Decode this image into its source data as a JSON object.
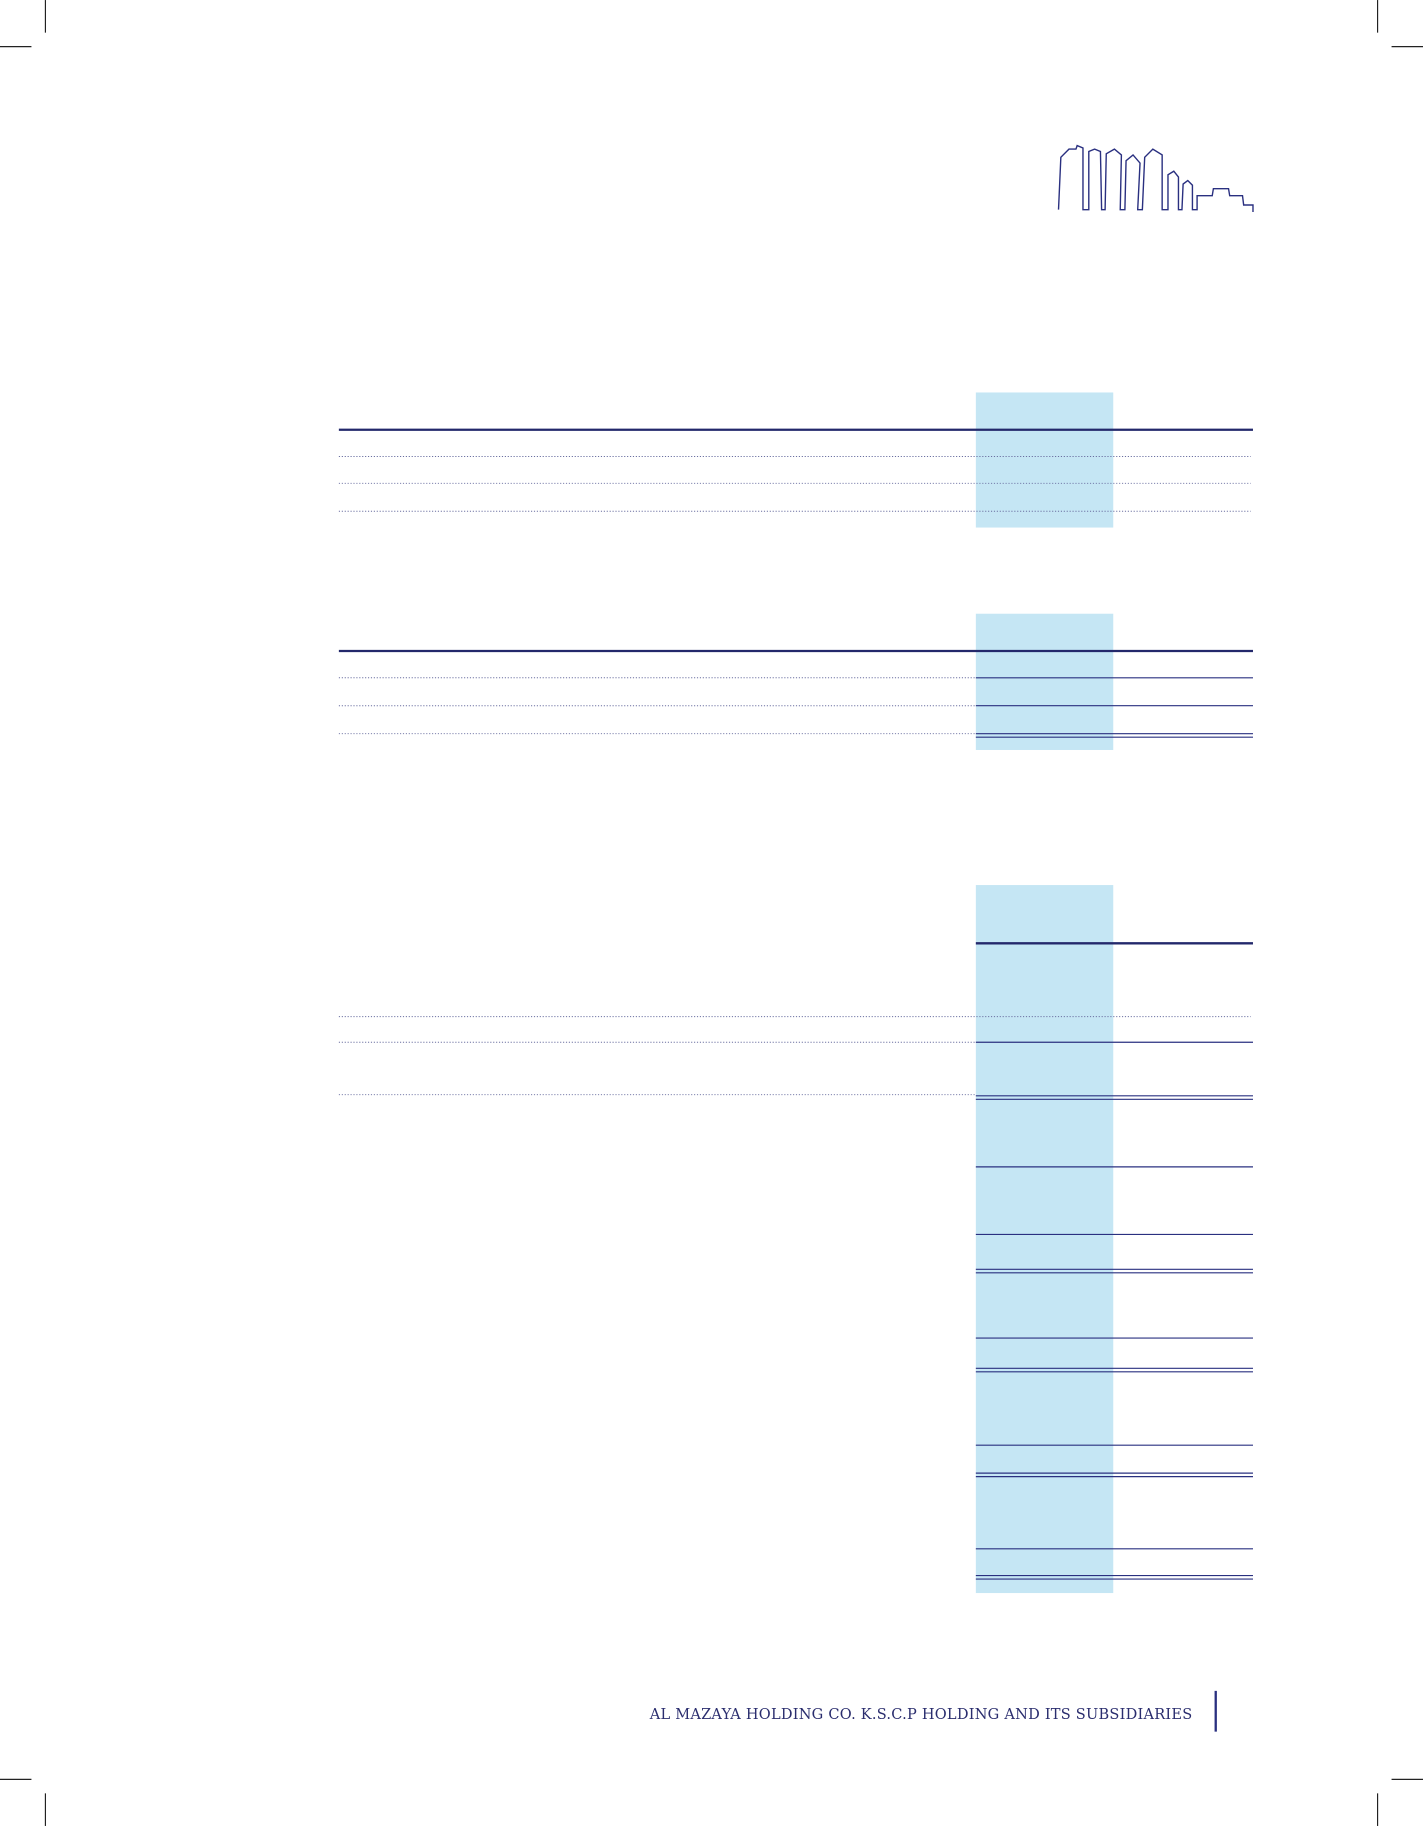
{
  "footer": {
    "text": "AL MAZAYA HOLDING CO. K.S.C.P HOLDING AND ITS SUBSIDIARIES"
  }
}
